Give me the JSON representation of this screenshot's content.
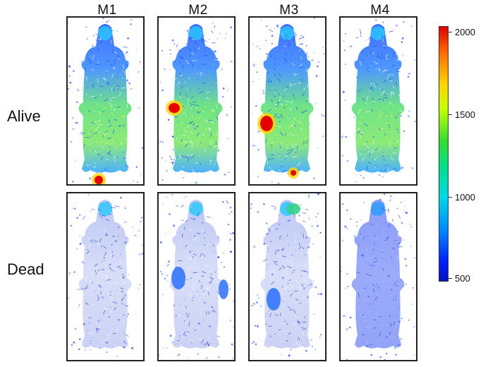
{
  "columns": [
    "M1",
    "M2",
    "M3",
    "M4"
  ],
  "rows": [
    "Alive",
    "Dead"
  ],
  "colorbar": {
    "ticks": [
      "2000",
      "1500",
      "1000",
      "500"
    ],
    "colors": [
      "#e00000",
      "#ffd000",
      "#33dd33",
      "#00d8e8",
      "#0022ff"
    ]
  }
}
